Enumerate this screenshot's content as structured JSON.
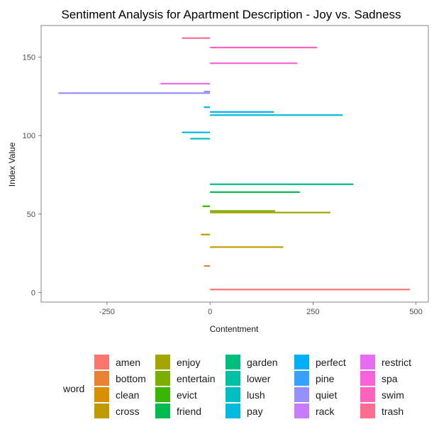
{
  "chart_data": {
    "type": "bar",
    "orientation": "horizontal",
    "title": "Sentiment Analysis for Apartment Description - Joy vs. Sadness",
    "xlabel": "Contentment",
    "ylabel": "Index Value",
    "xlim": [
      -410,
      530
    ],
    "ylim": [
      -6,
      170
    ],
    "x_ticks": [
      -250,
      0,
      250,
      500
    ],
    "x_tick_labels": [
      "-250",
      "0",
      "250",
      "500"
    ],
    "y_ticks": [
      0,
      50,
      100,
      150
    ],
    "y_tick_labels": [
      "0",
      "50",
      "100",
      "150"
    ],
    "grid": false,
    "legend": {
      "title": "word",
      "placement": "bottom"
    },
    "series": [
      {
        "name": "amen",
        "color": "#F8766D",
        "bars": [
          {
            "index": 2,
            "value": 485
          }
        ]
      },
      {
        "name": "bottom",
        "color": "#EA8331",
        "bars": [
          {
            "index": 17,
            "value": -15
          }
        ]
      },
      {
        "name": "clean",
        "color": "#D89000",
        "bars": []
      },
      {
        "name": "cross",
        "color": "#C09B00",
        "bars": [
          {
            "index": 29,
            "value": 178
          },
          {
            "index": 37,
            "value": -22
          }
        ]
      },
      {
        "name": "enjoy",
        "color": "#A3A500",
        "bars": [
          {
            "index": 51,
            "value": 292
          }
        ]
      },
      {
        "name": "entertain",
        "color": "#7CAE00",
        "bars": [
          {
            "index": 52,
            "value": 158
          }
        ]
      },
      {
        "name": "evict",
        "color": "#39B600",
        "bars": [
          {
            "index": 55,
            "value": -18
          }
        ]
      },
      {
        "name": "friend",
        "color": "#00BB4E",
        "bars": [
          {
            "index": 64,
            "value": 218
          }
        ]
      },
      {
        "name": "garden",
        "color": "#00BF7D",
        "bars": [
          {
            "index": 69,
            "value": 348
          }
        ]
      },
      {
        "name": "lower",
        "color": "#00C1A3",
        "bars": []
      },
      {
        "name": "lush",
        "color": "#00BFC4",
        "bars": [
          {
            "index": 98,
            "value": -48
          }
        ]
      },
      {
        "name": "pay",
        "color": "#00BAE0",
        "bars": [
          {
            "index": 102,
            "value": -68
          },
          {
            "index": 113,
            "value": 322
          }
        ]
      },
      {
        "name": "perfect",
        "color": "#00B0F6",
        "bars": [
          {
            "index": 115,
            "value": 155
          },
          {
            "index": 118,
            "value": -15
          }
        ]
      },
      {
        "name": "pine",
        "color": "#35A2FF",
        "bars": []
      },
      {
        "name": "quiet",
        "color": "#9590FF",
        "bars": [
          {
            "index": 127,
            "value": -368
          },
          {
            "index": 128,
            "value": -15
          }
        ]
      },
      {
        "name": "rack",
        "color": "#C77CFF",
        "bars": []
      },
      {
        "name": "restrict",
        "color": "#E76BF3",
        "bars": [
          {
            "index": 133,
            "value": -120
          }
        ]
      },
      {
        "name": "spa",
        "color": "#FA62DB",
        "bars": [
          {
            "index": 146,
            "value": 212
          }
        ]
      },
      {
        "name": "swim",
        "color": "#FF62BC",
        "bars": [
          {
            "index": 156,
            "value": 260
          }
        ]
      },
      {
        "name": "trash",
        "color": "#FF6C90",
        "bars": [
          {
            "index": 162,
            "value": -68
          }
        ]
      }
    ]
  }
}
